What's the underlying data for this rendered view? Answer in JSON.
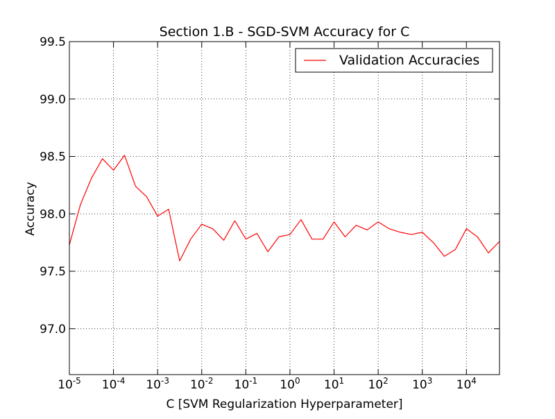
{
  "chart_data": {
    "type": "line",
    "title": "Section 1.B - SGD-SVM Accuracy for C",
    "xlabel": "C [SVM Regularization Hyperparameter]",
    "ylabel": "Accuracy",
    "xscale": "log",
    "xlim": [
      1e-05,
      56234
    ],
    "ylim": [
      96.6,
      99.5
    ],
    "xticks": [
      {
        "value": 1e-05,
        "base": "10",
        "exp": "-5"
      },
      {
        "value": 0.0001,
        "base": "10",
        "exp": "-4"
      },
      {
        "value": 0.001,
        "base": "10",
        "exp": "-3"
      },
      {
        "value": 0.01,
        "base": "10",
        "exp": "-2"
      },
      {
        "value": 0.1,
        "base": "10",
        "exp": "-1"
      },
      {
        "value": 1,
        "base": "10",
        "exp": "0"
      },
      {
        "value": 10,
        "base": "10",
        "exp": "1"
      },
      {
        "value": 100,
        "base": "10",
        "exp": "2"
      },
      {
        "value": 1000,
        "base": "10",
        "exp": "3"
      },
      {
        "value": 10000,
        "base": "10",
        "exp": "4"
      }
    ],
    "yticks": [
      {
        "value": 97.0,
        "label": "97.0"
      },
      {
        "value": 97.5,
        "label": "97.5"
      },
      {
        "value": 98.0,
        "label": "98.0"
      },
      {
        "value": 98.5,
        "label": "98.5"
      },
      {
        "value": 99.0,
        "label": "99.0"
      },
      {
        "value": 99.5,
        "label": "99.5"
      }
    ],
    "grid": true,
    "legend_position": "top-right",
    "series": [
      {
        "name": "Validation Accuracies",
        "color": "#ff0000",
        "x": [
          1e-05,
          1.78e-05,
          3.16e-05,
          5.62e-05,
          0.0001,
          0.000178,
          0.000316,
          0.000562,
          0.001,
          0.00178,
          0.00316,
          0.00562,
          0.01,
          0.0178,
          0.0316,
          0.0562,
          0.1,
          0.178,
          0.316,
          0.562,
          1,
          1.78,
          3.16,
          5.62,
          10,
          17.8,
          31.6,
          56.2,
          100,
          178,
          316,
          562,
          1000,
          1780,
          3160,
          5620,
          10000,
          17800,
          31600,
          56200
        ],
        "y": [
          97.73,
          98.08,
          98.31,
          98.48,
          98.38,
          98.51,
          98.24,
          98.15,
          97.98,
          98.04,
          97.59,
          97.78,
          97.91,
          97.87,
          97.77,
          97.94,
          97.78,
          97.83,
          97.67,
          97.8,
          97.82,
          97.95,
          97.78,
          97.78,
          97.93,
          97.8,
          97.9,
          97.86,
          97.93,
          97.87,
          97.84,
          97.82,
          97.84,
          97.75,
          97.63,
          97.69,
          97.87,
          97.8,
          97.66,
          97.76
        ]
      }
    ]
  }
}
